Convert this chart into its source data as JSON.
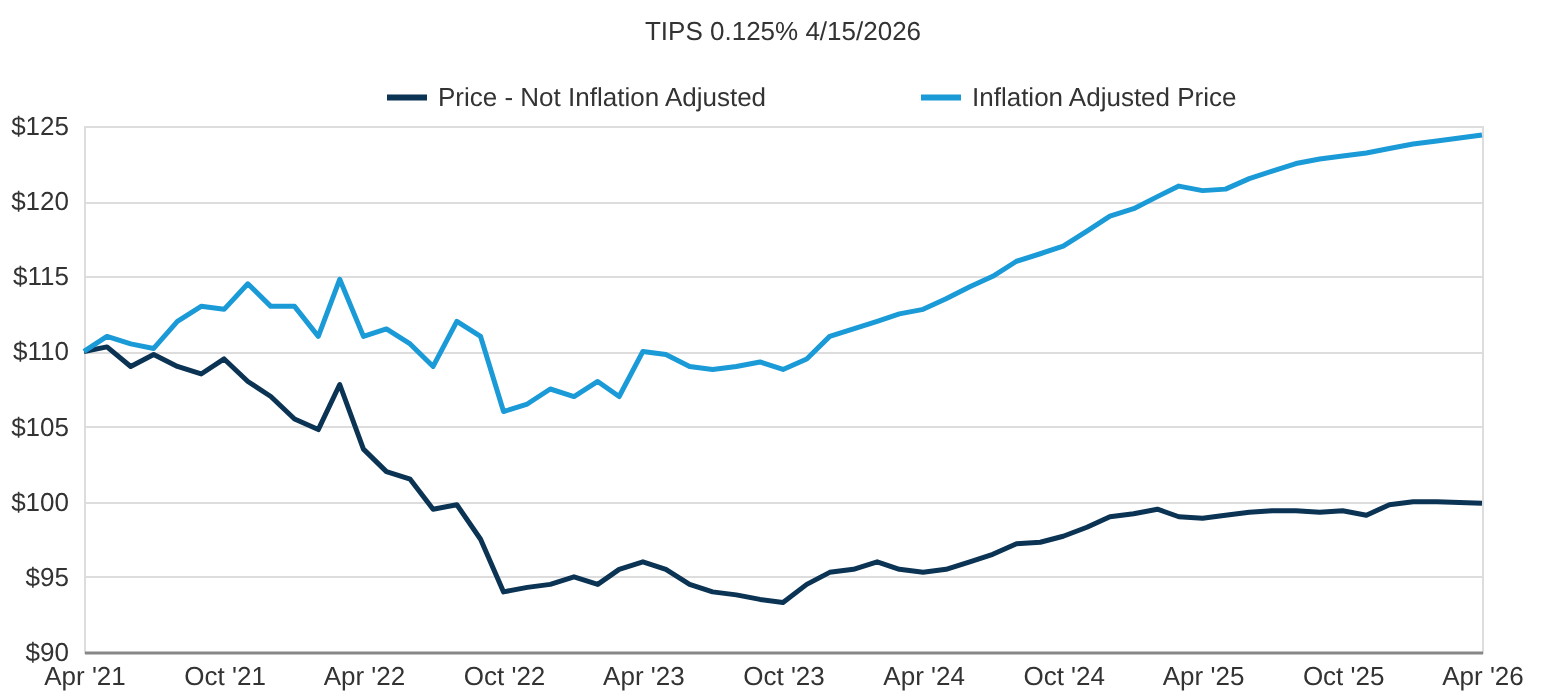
{
  "chart_data": {
    "type": "line",
    "title": "TIPS 0.125% 4/15/2026",
    "x": [
      "2021-04",
      "2021-05",
      "2021-06",
      "2021-07",
      "2021-08",
      "2021-09",
      "2021-10",
      "2021-11",
      "2021-12",
      "2022-01",
      "2022-02",
      "2022-03",
      "2022-04",
      "2022-05",
      "2022-06",
      "2022-07",
      "2022-08",
      "2022-09",
      "2022-10",
      "2022-11",
      "2022-12",
      "2023-01",
      "2023-02",
      "2023-03",
      "2023-04",
      "2023-05",
      "2023-06",
      "2023-07",
      "2023-08",
      "2023-09",
      "2023-10",
      "2023-11",
      "2023-12",
      "2024-01",
      "2024-02",
      "2024-03",
      "2024-04",
      "2024-05",
      "2024-06",
      "2024-07",
      "2024-08",
      "2024-09",
      "2024-10",
      "2024-11",
      "2024-12",
      "2025-01",
      "2025-02",
      "2025-03",
      "2025-04",
      "2025-05",
      "2025-06",
      "2025-07",
      "2025-08",
      "2025-09",
      "2025-10",
      "2025-11",
      "2025-12",
      "2026-01",
      "2026-02",
      "2026-04"
    ],
    "series": [
      {
        "name": "Price - Not Inflation Adjusted",
        "color": "#0b3354",
        "values": [
          110,
          110.3,
          109,
          109.8,
          109,
          108.5,
          109.5,
          108,
          107,
          105.5,
          104.8,
          107.8,
          103.5,
          102,
          101.5,
          99.5,
          99.8,
          97.5,
          94,
          94.3,
          94.5,
          95,
          94.5,
          95.5,
          96,
          95.5,
          94.5,
          94,
          93.8,
          93.5,
          93.3,
          94.5,
          95.3,
          95.5,
          96,
          95.5,
          95.3,
          95.5,
          96,
          96.5,
          97.2,
          97.3,
          97.7,
          98.3,
          99,
          99.2,
          99.5,
          99,
          98.9,
          99.1,
          99.3,
          99.4,
          99.4,
          99.3,
          99.4,
          99.1,
          99.8,
          100,
          100,
          99.9
        ]
      },
      {
        "name": "Inflation Adjusted Price",
        "color": "#1a9ad6",
        "values": [
          110,
          111,
          110.5,
          110.2,
          112,
          113,
          112.8,
          114.5,
          113,
          113,
          111,
          114.8,
          111,
          111.5,
          110.5,
          109,
          112,
          111,
          106,
          106.5,
          107.5,
          107,
          108,
          107,
          110,
          109.8,
          109,
          108.8,
          109,
          109.3,
          108.8,
          109.5,
          111,
          111.5,
          112,
          112.5,
          112.8,
          113.5,
          114.3,
          115,
          116,
          116.5,
          117,
          118,
          119,
          119.5,
          120.3,
          121,
          120.7,
          120.8,
          121.5,
          122,
          122.5,
          122.8,
          123,
          123.2,
          123.5,
          123.8,
          124,
          124.4
        ]
      }
    ],
    "xlim": [
      "2021-04",
      "2026-04"
    ],
    "xticks": [
      {
        "value": "2021-04",
        "label": "Apr '21"
      },
      {
        "value": "2021-10",
        "label": "Oct '21"
      },
      {
        "value": "2022-04",
        "label": "Apr '22"
      },
      {
        "value": "2022-10",
        "label": "Oct '22"
      },
      {
        "value": "2023-04",
        "label": "Apr '23"
      },
      {
        "value": "2023-10",
        "label": "Oct '23"
      },
      {
        "value": "2024-04",
        "label": "Apr '24"
      },
      {
        "value": "2024-10",
        "label": "Oct '24"
      },
      {
        "value": "2025-04",
        "label": "Apr '25"
      },
      {
        "value": "2025-10",
        "label": "Oct '25"
      },
      {
        "value": "2026-04",
        "label": "Apr '26"
      }
    ],
    "ylim": [
      90,
      125
    ],
    "yticks": [
      {
        "value": 90,
        "label": "$90"
      },
      {
        "value": 95,
        "label": "$95"
      },
      {
        "value": 100,
        "label": "$100"
      },
      {
        "value": 105,
        "label": "$105"
      },
      {
        "value": 110,
        "label": "$110"
      },
      {
        "value": 115,
        "label": "$115"
      },
      {
        "value": 120,
        "label": "$120"
      },
      {
        "value": 125,
        "label": "$125"
      }
    ],
    "grid": "y",
    "legend": "top",
    "marker": "none",
    "line_style": "solid"
  }
}
